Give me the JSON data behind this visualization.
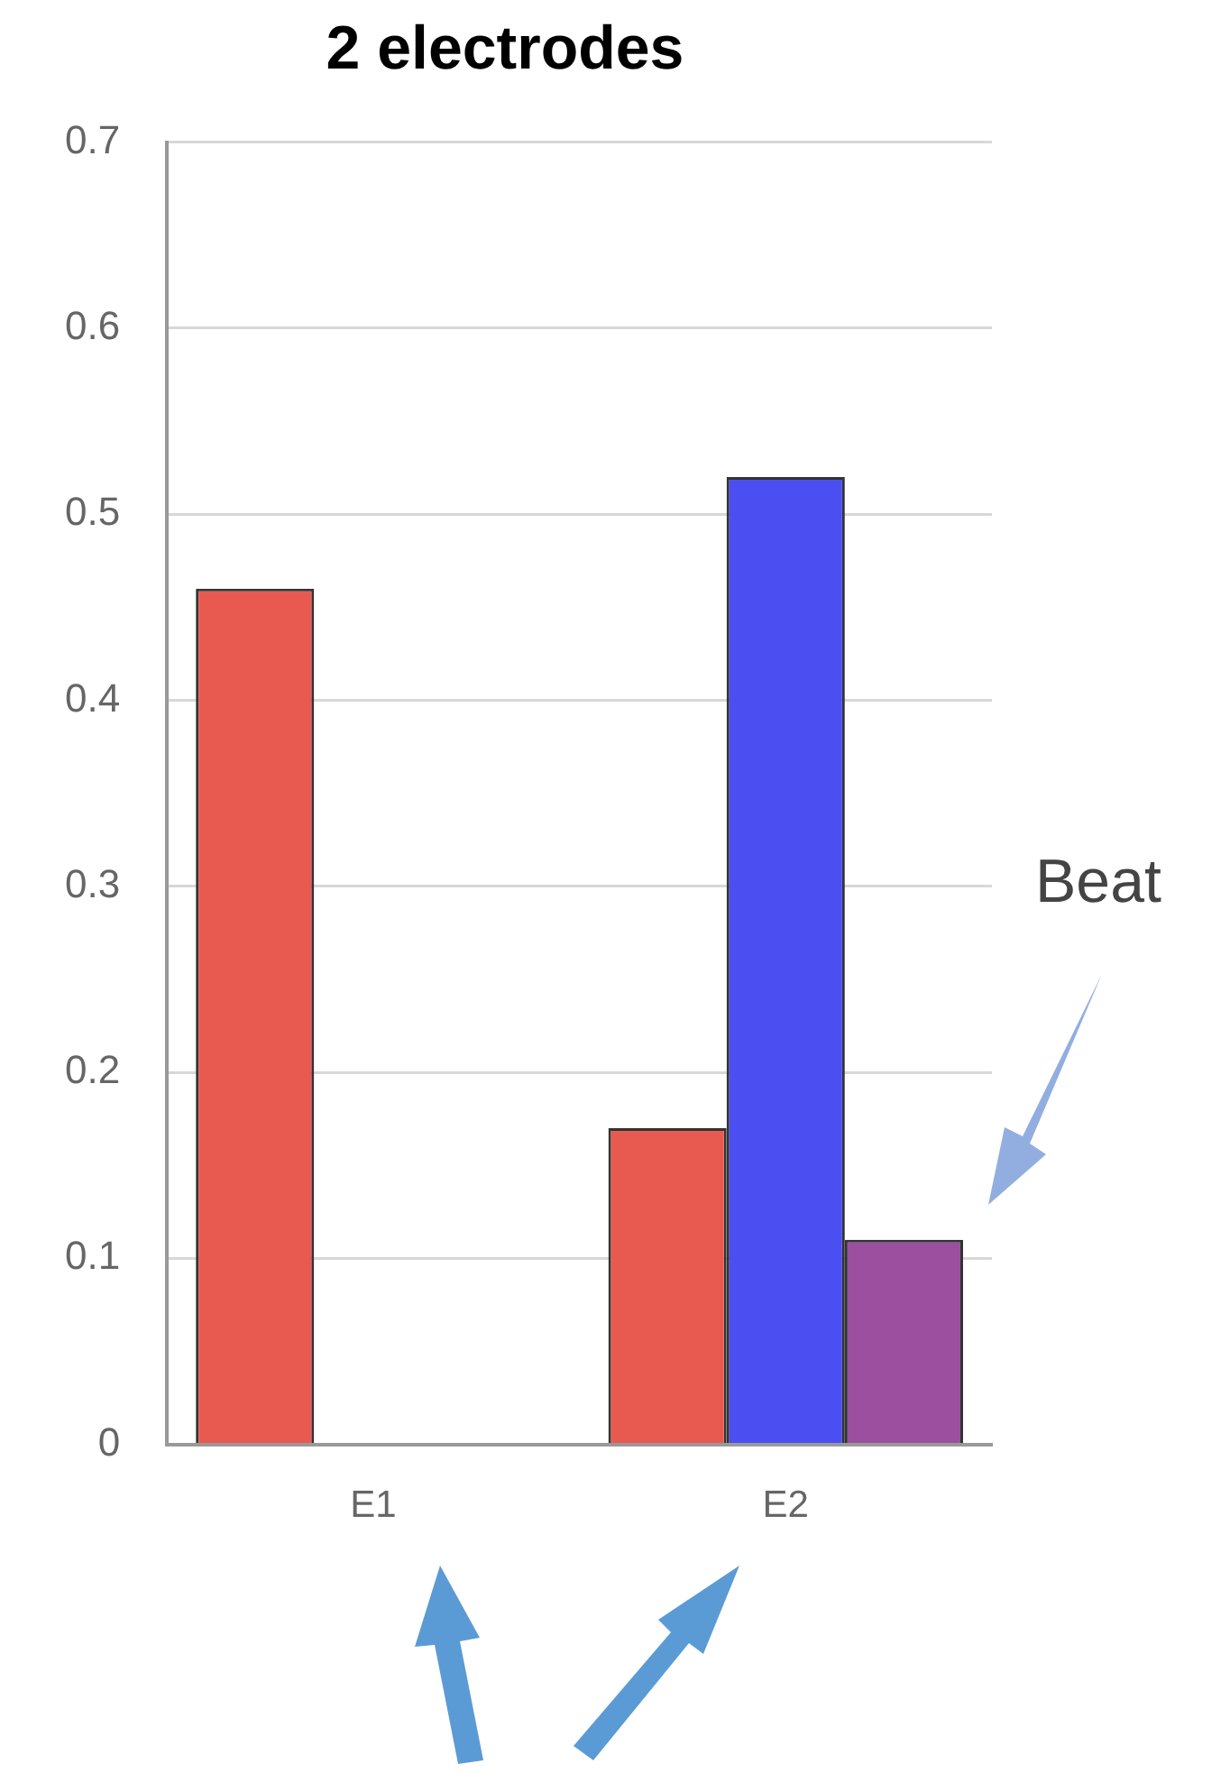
{
  "chart_data": {
    "type": "bar",
    "title": "2 electrodes",
    "categories": [
      "E1",
      "E2"
    ],
    "series": [
      {
        "color": "#e85a50",
        "values": [
          0.46,
          0.17
        ]
      },
      {
        "color": "#4b4ff2",
        "values": [
          null,
          0.52
        ]
      },
      {
        "color": "#9b4f9e",
        "values": [
          null,
          0.11
        ]
      }
    ],
    "ylim": [
      0,
      0.7
    ],
    "yticks": [
      0,
      0.1,
      0.2,
      0.3,
      0.4,
      0.5,
      0.6,
      0.7
    ],
    "grid": "y",
    "legend": false,
    "annotations": [
      "Beat"
    ]
  }
}
